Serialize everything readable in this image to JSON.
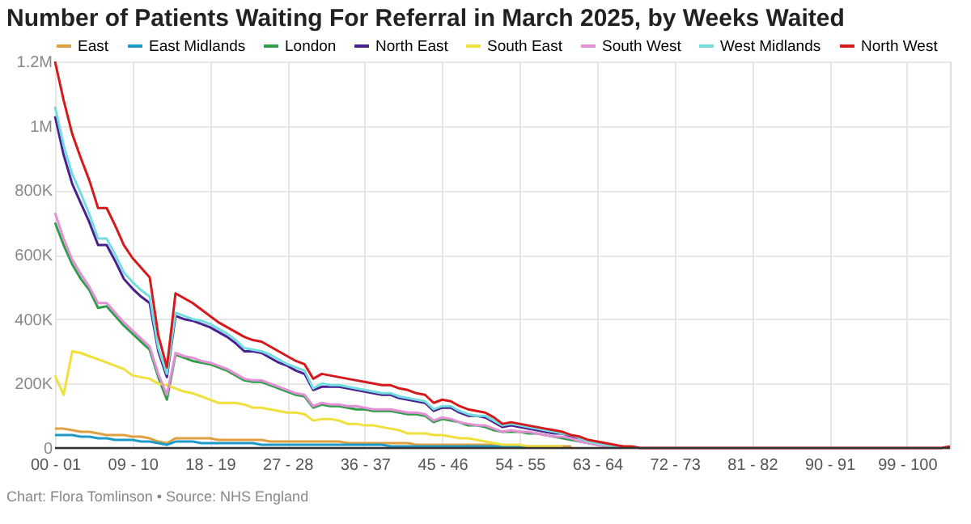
{
  "chart_data": {
    "type": "line",
    "title": "Number of Patients Waiting For Referral in March 2025, by Weeks Waited",
    "categories": [
      "00 - 01",
      null,
      null,
      null,
      null,
      null,
      null,
      null,
      null,
      "09 - 10",
      null,
      null,
      null,
      null,
      null,
      null,
      null,
      null,
      "18 - 19",
      null,
      null,
      null,
      null,
      null,
      null,
      null,
      null,
      "27 - 28",
      null,
      null,
      null,
      null,
      null,
      null,
      null,
      null,
      "36 - 37",
      null,
      null,
      null,
      null,
      null,
      null,
      null,
      null,
      "45 - 46",
      null,
      null,
      null,
      null,
      null,
      null,
      null,
      null,
      "54 - 55",
      null,
      null,
      null,
      null,
      null,
      null,
      null,
      null,
      "63 - 64",
      null,
      null,
      null,
      null,
      null,
      null,
      null,
      null,
      "72 - 73",
      null,
      null,
      null,
      null,
      null,
      null,
      null,
      null,
      "81 - 82",
      null,
      null,
      null,
      null,
      null,
      null,
      null,
      null,
      "90 - 91",
      null,
      null,
      null,
      null,
      null,
      null,
      null,
      null,
      "99 - 100",
      null,
      null,
      null,
      null,
      null
    ],
    "ylim": [
      0,
      1200000
    ],
    "yticks": [
      0,
      {
        "value": 200000,
        "label": "200K"
      },
      {
        "value": 400000,
        "label": "400K"
      },
      {
        "value": 600000,
        "label": "600K"
      },
      {
        "value": 800000,
        "label": "800K"
      },
      {
        "value": 1000000,
        "label": "1M"
      },
      {
        "value": 1200000,
        "label": "1.2M"
      }
    ],
    "grid": true,
    "legend": "top",
    "marker": "none",
    "line_style": "solid",
    "series": [
      {
        "name": "East",
        "color": "#e0a040",
        "values": [
          60000,
          60000,
          55000,
          50000,
          50000,
          45000,
          40000,
          40000,
          40000,
          35000,
          35000,
          30000,
          20000,
          15000,
          30000,
          30000,
          30000,
          30000,
          30000,
          25000,
          25000,
          25000,
          25000,
          25000,
          25000,
          20000,
          20000,
          20000,
          20000,
          20000,
          20000,
          20000,
          20000,
          20000,
          15000,
          15000,
          15000,
          15000,
          15000,
          15000,
          15000,
          15000,
          10000,
          10000,
          10000,
          10000,
          10000,
          10000,
          10000,
          10000,
          10000,
          10000,
          5000,
          5000,
          5000,
          5000,
          5000,
          5000,
          5000,
          5000,
          5000,
          null,
          null,
          null,
          null,
          null,
          null,
          null,
          null,
          null,
          null,
          null,
          null,
          null,
          null,
          null,
          null,
          null,
          null,
          null,
          null,
          null,
          null,
          null,
          null,
          null,
          null,
          null,
          null,
          null,
          null,
          null,
          null,
          null,
          null,
          null,
          null,
          null,
          null,
          null,
          null,
          null,
          null,
          null,
          null
        ]
      },
      {
        "name": "East Midlands",
        "color": "#1e9ac8",
        "values": [
          40000,
          40000,
          40000,
          35000,
          35000,
          30000,
          30000,
          25000,
          25000,
          25000,
          20000,
          20000,
          15000,
          10000,
          20000,
          20000,
          20000,
          15000,
          15000,
          15000,
          15000,
          15000,
          15000,
          15000,
          10000,
          10000,
          10000,
          10000,
          10000,
          10000,
          10000,
          10000,
          10000,
          10000,
          10000,
          10000,
          10000,
          10000,
          10000,
          5000,
          5000,
          5000,
          5000,
          5000,
          5000,
          5000,
          5000,
          5000,
          5000,
          5000,
          5000,
          5000,
          5000,
          5000,
          5000,
          5000,
          null,
          null,
          null,
          null,
          null,
          null,
          null,
          null,
          null,
          null,
          null,
          null,
          null,
          null,
          null,
          null,
          null,
          null,
          null,
          null,
          null,
          null,
          null,
          null,
          null,
          null,
          null,
          null,
          null,
          null,
          null,
          null,
          null,
          null,
          null,
          null,
          null,
          null,
          null,
          null,
          null,
          null,
          null,
          null,
          null,
          null,
          null,
          null,
          null
        ]
      },
      {
        "name": "London",
        "color": "#2e9e4a",
        "values": [
          700000,
          630000,
          570000,
          525000,
          490000,
          435000,
          440000,
          410000,
          380000,
          355000,
          330000,
          305000,
          220000,
          150000,
          290000,
          280000,
          270000,
          265000,
          260000,
          250000,
          240000,
          225000,
          210000,
          205000,
          205000,
          195000,
          185000,
          175000,
          165000,
          160000,
          125000,
          135000,
          130000,
          130000,
          125000,
          120000,
          120000,
          115000,
          115000,
          115000,
          110000,
          105000,
          105000,
          100000,
          80000,
          90000,
          85000,
          80000,
          70000,
          70000,
          65000,
          55000,
          50000,
          50000,
          50000,
          45000,
          45000,
          40000,
          35000,
          30000,
          25000,
          20000,
          15000,
          10000,
          5000,
          5000,
          null,
          null,
          null,
          null,
          null,
          null,
          null,
          null,
          null,
          null,
          null,
          null,
          null,
          null,
          null,
          null,
          null,
          null,
          null,
          null,
          null,
          null,
          null,
          null,
          null,
          null,
          null,
          null,
          null,
          null,
          null,
          null,
          null,
          null,
          null,
          null,
          null,
          null,
          null
        ]
      },
      {
        "name": "North East",
        "color": "#4a1f8f",
        "values": [
          1030000,
          910000,
          820000,
          760000,
          700000,
          630000,
          630000,
          580000,
          525000,
          495000,
          470000,
          450000,
          300000,
          220000,
          410000,
          400000,
          395000,
          385000,
          375000,
          360000,
          345000,
          325000,
          300000,
          300000,
          295000,
          280000,
          265000,
          255000,
          240000,
          230000,
          180000,
          190000,
          190000,
          190000,
          185000,
          180000,
          175000,
          170000,
          165000,
          165000,
          155000,
          150000,
          145000,
          140000,
          115000,
          125000,
          125000,
          110000,
          100000,
          100000,
          95000,
          80000,
          65000,
          70000,
          65000,
          60000,
          55000,
          50000,
          45000,
          45000,
          35000,
          30000,
          20000,
          15000,
          10000,
          5000,
          5000,
          null,
          null,
          null,
          null,
          null,
          null,
          null,
          null,
          null,
          null,
          null,
          null,
          null,
          null,
          null,
          null,
          null,
          null,
          null,
          null,
          null,
          null,
          null,
          null,
          null,
          null,
          null,
          null,
          null,
          null,
          null,
          null,
          null,
          null,
          null,
          null,
          null,
          null
        ]
      },
      {
        "name": "South East",
        "color": "#f0e03c",
        "values": [
          225000,
          165000,
          300000,
          295000,
          285000,
          275000,
          265000,
          255000,
          245000,
          225000,
          220000,
          215000,
          200000,
          195000,
          185000,
          175000,
          170000,
          160000,
          150000,
          140000,
          140000,
          140000,
          135000,
          125000,
          125000,
          120000,
          115000,
          110000,
          110000,
          105000,
          85000,
          90000,
          90000,
          85000,
          75000,
          75000,
          70000,
          70000,
          65000,
          60000,
          55000,
          45000,
          45000,
          45000,
          40000,
          40000,
          35000,
          30000,
          30000,
          25000,
          20000,
          15000,
          10000,
          10000,
          10000,
          5000,
          5000,
          5000,
          5000,
          5000,
          null,
          null,
          null,
          null,
          null,
          null,
          null,
          null,
          null,
          null,
          null,
          null,
          null,
          null,
          null,
          null,
          null,
          null,
          null,
          null,
          null,
          null,
          null,
          null,
          null,
          null,
          null,
          null,
          null,
          null,
          null,
          null,
          null,
          null,
          null,
          null,
          null,
          null,
          null,
          null,
          null,
          null,
          null,
          null,
          null
        ]
      },
      {
        "name": "South West",
        "color": "#e48fd6",
        "values": [
          730000,
          650000,
          585000,
          540000,
          500000,
          450000,
          450000,
          420000,
          390000,
          365000,
          340000,
          315000,
          230000,
          165000,
          295000,
          285000,
          280000,
          270000,
          265000,
          255000,
          245000,
          230000,
          215000,
          210000,
          210000,
          200000,
          190000,
          180000,
          170000,
          165000,
          130000,
          140000,
          135000,
          135000,
          130000,
          130000,
          125000,
          120000,
          120000,
          120000,
          115000,
          110000,
          110000,
          105000,
          85000,
          95000,
          90000,
          80000,
          75000,
          70000,
          70000,
          60000,
          50000,
          55000,
          50000,
          50000,
          45000,
          40000,
          35000,
          35000,
          30000,
          20000,
          15000,
          10000,
          5000,
          5000,
          null,
          null,
          null,
          null,
          null,
          null,
          null,
          null,
          null,
          null,
          null,
          null,
          null,
          null,
          null,
          null,
          null,
          null,
          null,
          null,
          null,
          null,
          null,
          null,
          null,
          null,
          null,
          null,
          null,
          null,
          null,
          null,
          null,
          null,
          null,
          null,
          null,
          null,
          null
        ]
      },
      {
        "name": "West Midlands",
        "color": "#70dede",
        "values": [
          1060000,
          940000,
          850000,
          790000,
          725000,
          650000,
          650000,
          600000,
          545000,
          515000,
          490000,
          470000,
          310000,
          230000,
          420000,
          410000,
          400000,
          395000,
          385000,
          370000,
          355000,
          335000,
          310000,
          305000,
          300000,
          290000,
          275000,
          260000,
          250000,
          240000,
          185000,
          200000,
          195000,
          195000,
          190000,
          185000,
          180000,
          175000,
          170000,
          170000,
          160000,
          155000,
          150000,
          145000,
          120000,
          130000,
          130000,
          115000,
          105000,
          100000,
          100000,
          85000,
          70000,
          75000,
          70000,
          65000,
          60000,
          55000,
          50000,
          45000,
          40000,
          30000,
          20000,
          15000,
          10000,
          5000,
          5000,
          null,
          null,
          null,
          null,
          null,
          null,
          null,
          null,
          null,
          null,
          null,
          null,
          null,
          null,
          null,
          null,
          null,
          null,
          null,
          null,
          null,
          null,
          null,
          null,
          null,
          null,
          null,
          null,
          null,
          null,
          null,
          null,
          null,
          null,
          null,
          null,
          null,
          null
        ]
      },
      {
        "name": "North West",
        "color": "#d6191b",
        "values": [
          1200000,
          1080000,
          975000,
          900000,
          830000,
          745000,
          745000,
          690000,
          630000,
          590000,
          560000,
          530000,
          350000,
          250000,
          480000,
          465000,
          450000,
          430000,
          410000,
          390000,
          375000,
          360000,
          345000,
          335000,
          330000,
          315000,
          300000,
          285000,
          270000,
          260000,
          215000,
          230000,
          225000,
          220000,
          215000,
          210000,
          205000,
          200000,
          195000,
          195000,
          185000,
          180000,
          170000,
          165000,
          140000,
          150000,
          145000,
          130000,
          120000,
          115000,
          110000,
          95000,
          75000,
          80000,
          75000,
          70000,
          65000,
          60000,
          55000,
          50000,
          40000,
          35000,
          25000,
          20000,
          15000,
          10000,
          5000,
          5000,
          0,
          0,
          0,
          0,
          0,
          0,
          0,
          0,
          0,
          0,
          0,
          0,
          0,
          0,
          0,
          0,
          0,
          0,
          0,
          0,
          0,
          0,
          0,
          0,
          0,
          0,
          0,
          0,
          0,
          0,
          0,
          0,
          0,
          0,
          0,
          0,
          5000
        ]
      }
    ],
    "annotations": [
      "Chart: Flora Tomlinson • Source: NHS England"
    ]
  }
}
